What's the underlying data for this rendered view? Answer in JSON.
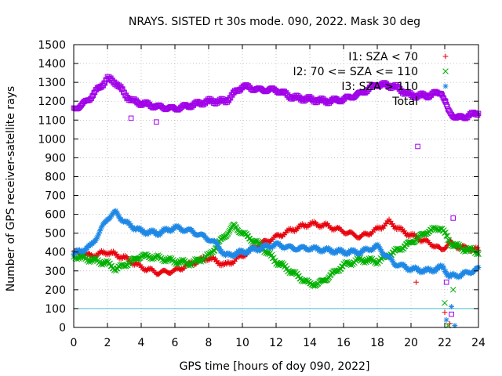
{
  "chart_data": {
    "type": "scatter",
    "title": "NRAYS. SISTED rt 30s mode. 090, 2022. Mask 30 deg",
    "xlabel": "GPS time [hours of doy 090, 2022]",
    "ylabel": "Number of GPS receiver-satellite rays",
    "xlim": [
      0,
      24
    ],
    "ylim": [
      0,
      1500
    ],
    "xticks": [
      0,
      2,
      4,
      6,
      8,
      10,
      12,
      14,
      16,
      18,
      20,
      22,
      24
    ],
    "yticks": [
      0,
      100,
      200,
      300,
      400,
      500,
      600,
      700,
      800,
      900,
      1000,
      1100,
      1200,
      1300,
      1400,
      1500
    ],
    "grid": true,
    "legend_position": "top-right",
    "reference_line": {
      "y": 100,
      "color": "#40c0d0"
    },
    "series": [
      {
        "name": "I1: SZA < 70",
        "marker": "plus",
        "color": "#e8000b",
        "x": [
          0,
          1,
          2,
          3,
          4,
          5,
          6,
          7,
          8,
          9,
          10,
          11,
          12,
          13,
          14,
          15,
          16,
          17,
          18,
          18.7,
          19.5,
          20.5,
          21.3,
          21.8,
          22.3,
          22.7,
          23.3,
          24
        ],
        "y": [
          400,
          380,
          400,
          370,
          320,
          290,
          300,
          340,
          370,
          330,
          380,
          440,
          480,
          520,
          550,
          540,
          510,
          480,
          520,
          560,
          510,
          470,
          440,
          410,
          450,
          430,
          420,
          410
        ]
      },
      {
        "name": "I2: 70 <= SZA <= 110",
        "marker": "cross",
        "color": "#00b000",
        "x": [
          0,
          1,
          2,
          2.5,
          3,
          4,
          5,
          6,
          7,
          8,
          9,
          9.5,
          10,
          11,
          12,
          13,
          14,
          14.5,
          15,
          16,
          17,
          18,
          19,
          20,
          21,
          21.8,
          22.3,
          23,
          24
        ],
        "y": [
          380,
          360,
          340,
          310,
          330,
          380,
          370,
          350,
          340,
          380,
          490,
          540,
          500,
          440,
          350,
          290,
          230,
          230,
          260,
          330,
          360,
          350,
          400,
          450,
          510,
          530,
          450,
          420,
          400
        ]
      },
      {
        "name": "I3: SZA > 110",
        "marker": "star",
        "color": "#1e88e5",
        "x": [
          0,
          1,
          1.5,
          2,
          2.5,
          3,
          4,
          5,
          6,
          7,
          8,
          8.5,
          9,
          10,
          11,
          12,
          13,
          14,
          15,
          16,
          17,
          18,
          19,
          20,
          21,
          21.9,
          22.3,
          23,
          24
        ],
        "y": [
          390,
          430,
          500,
          580,
          610,
          560,
          510,
          500,
          530,
          510,
          470,
          440,
          380,
          400,
          420,
          440,
          420,
          420,
          410,
          400,
          400,
          430,
          340,
          310,
          300,
          320,
          270,
          280,
          310
        ]
      },
      {
        "name": "Total",
        "marker": "square",
        "color": "#a000e8",
        "x": [
          0,
          0.5,
          1,
          1.5,
          2,
          2.5,
          3,
          3.5,
          4,
          5,
          6,
          7,
          8,
          9,
          10,
          11,
          12,
          13,
          14,
          15,
          16,
          17,
          18,
          19,
          20,
          21,
          21.8,
          22.2,
          22.7,
          23.3,
          24
        ],
        "y": [
          1160,
          1180,
          1220,
          1270,
          1320,
          1300,
          1240,
          1200,
          1190,
          1170,
          1160,
          1180,
          1200,
          1200,
          1280,
          1260,
          1260,
          1220,
          1210,
          1200,
          1210,
          1240,
          1290,
          1280,
          1230,
          1230,
          1250,
          1150,
          1110,
          1120,
          1140
        ]
      }
    ],
    "outliers": [
      {
        "series": 3,
        "x": 20.4,
        "y": 960
      },
      {
        "series": 3,
        "x": 3.4,
        "y": 1110
      },
      {
        "series": 3,
        "x": 4.9,
        "y": 1090
      },
      {
        "series": 3,
        "x": 22.5,
        "y": 580
      },
      {
        "series": 3,
        "x": 22.1,
        "y": 240
      },
      {
        "series": 3,
        "x": 22.4,
        "y": 70
      },
      {
        "series": 0,
        "x": 20.3,
        "y": 240
      },
      {
        "series": 0,
        "x": 22.0,
        "y": 80
      },
      {
        "series": 0,
        "x": 22.3,
        "y": 20
      },
      {
        "series": 1,
        "x": 22.0,
        "y": 130
      },
      {
        "series": 1,
        "x": 22.5,
        "y": 200
      },
      {
        "series": 1,
        "x": 22.2,
        "y": 10
      },
      {
        "series": 2,
        "x": 22.4,
        "y": 110
      },
      {
        "series": 2,
        "x": 22.1,
        "y": 40
      },
      {
        "series": 2,
        "x": 22.6,
        "y": 10
      }
    ]
  },
  "legend_entries": [
    "I1: SZA < 70",
    "I2: 70 <= SZA <= 110",
    "I3: SZA > 110",
    "Total"
  ]
}
